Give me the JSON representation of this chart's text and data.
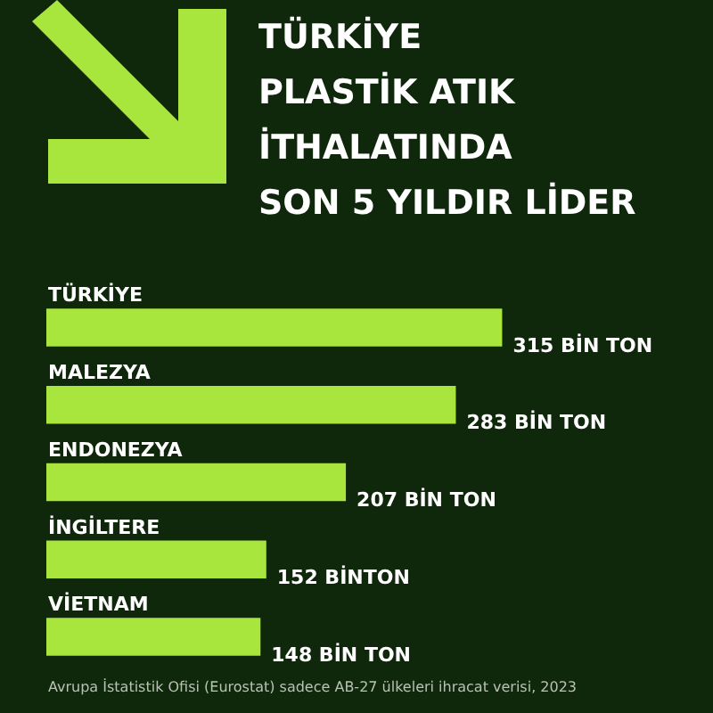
{
  "chart_data": {
    "type": "bar",
    "orientation": "horizontal",
    "title": "TÜRKİYE\nPLASTİK ATIK\nİTHALATINDA\nSON 5 YILDIR LİDER",
    "categories": [
      "TÜRKİYE",
      "MALEZYA",
      "ENDONEZYA",
      "İNGİLTERE",
      "VİETNAM"
    ],
    "values": [
      315,
      283,
      207,
      152,
      148
    ],
    "value_labels": [
      "315 BİN TON",
      "283 BİN TON",
      "207 BİN TON",
      "152 BİNTON",
      "148 BİN TON"
    ],
    "color": "#a8e63e",
    "tick_labels": false,
    "legend": false,
    "annotations": [
      "Avrupa İstatistik Ofisi (Eurostat) sadece AB-27 ülkeleri ihracat verisi, 2023"
    ]
  }
}
